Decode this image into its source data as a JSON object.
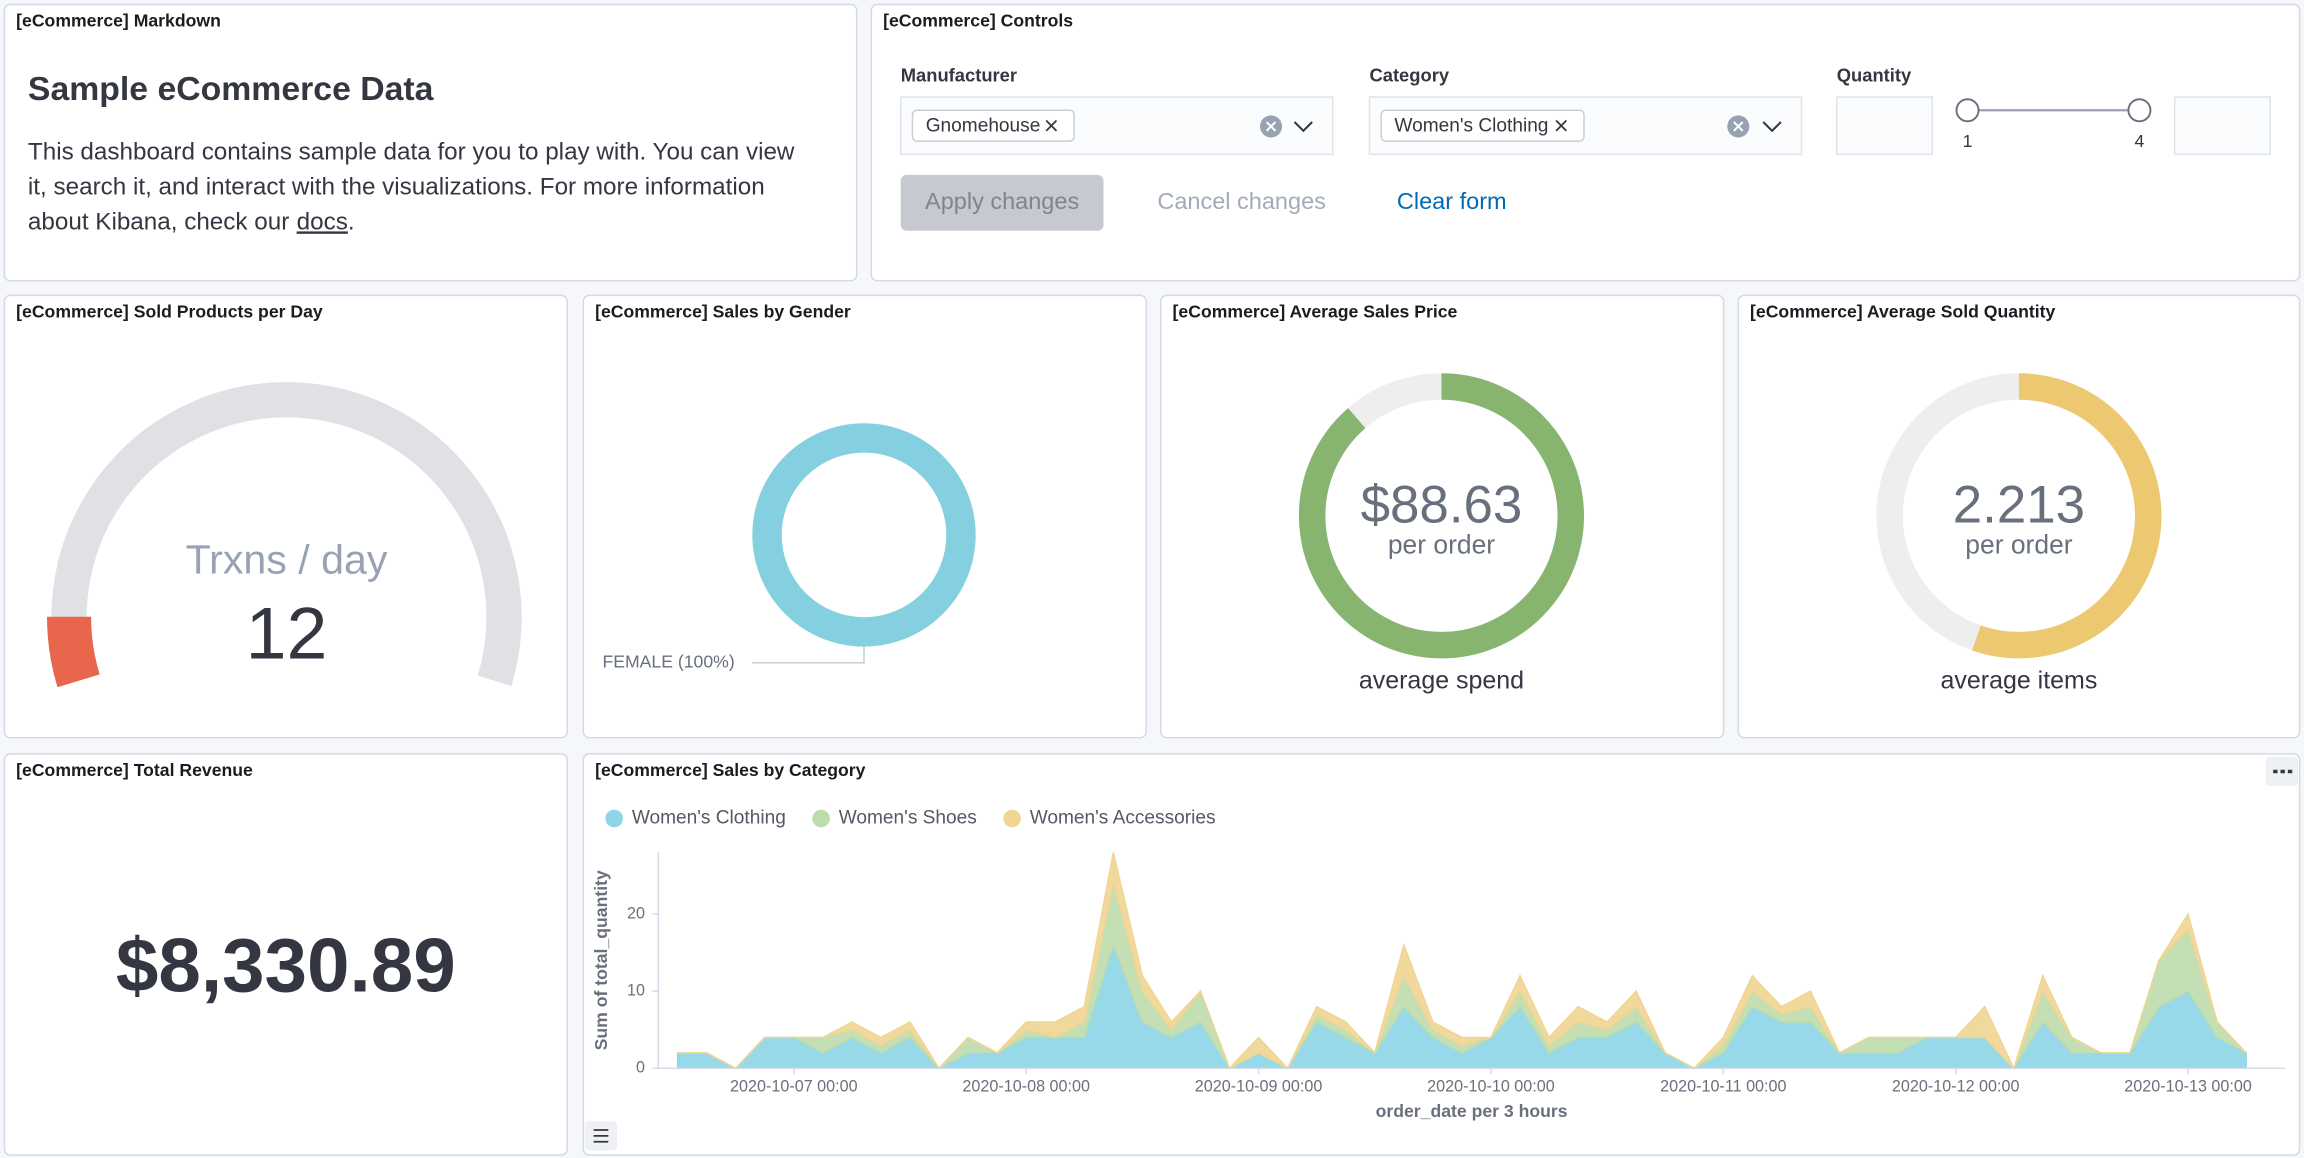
{
  "markdown": {
    "title": "[eCommerce] Markdown",
    "heading": "Sample eCommerce Data",
    "lines": [
      "This dashboard contains sample data for you to play with. You can view",
      "it, search it, and interact with the visualizations. For more information",
      "about Kibana, check our"
    ],
    "link": "docs",
    "end": "."
  },
  "controls": {
    "title": "[eCommerce] Controls",
    "manufacturer": {
      "label": "Manufacturer",
      "selected": "Gnomehouse"
    },
    "category": {
      "label": "Category",
      "selected": "Women's Clothing"
    },
    "quantity": {
      "label": "Quantity",
      "min": 1,
      "max": 4
    },
    "buttons": {
      "apply": "Apply changes",
      "cancel": "Cancel changes",
      "clear": "Clear form"
    }
  },
  "chart_data": [
    {
      "type": "gauge",
      "title": "[eCommerce] Sold Products per Day",
      "label": "Trxns / day",
      "value": 12,
      "range": [
        0,
        150
      ],
      "color": "#e7664c"
    },
    {
      "type": "donut",
      "title": "[eCommerce] Sales by Gender",
      "values": [
        100
      ],
      "value_labels": [
        "FEMALE (100%)"
      ],
      "colors": [
        "#85d0e0"
      ]
    },
    {
      "type": "goal",
      "title": "[eCommerce] Average Sales Price",
      "value": 88.63,
      "value_label": "$88.63",
      "sublabel": "per order",
      "caption": "average spend",
      "range": [
        0,
        100
      ],
      "color": "#87b46f"
    },
    {
      "type": "goal",
      "title": "[eCommerce] Average Sold Quantity",
      "value": 2.213,
      "sublabel": "per order",
      "caption": "average items",
      "range": [
        0,
        4
      ],
      "color": "#ecc870"
    },
    {
      "type": "metric",
      "title": "[eCommerce] Total Revenue",
      "value": 8330.89,
      "value_label": "$8,330.89"
    },
    {
      "type": "area",
      "stacked": true,
      "title": "[eCommerce] Sales by Category",
      "xlabel": "order_date per 3 hours",
      "ylabel": "Sum of total_quantity",
      "legend": "top-left",
      "x": [
        "2020-10-06 12:00",
        "2020-10-06 15:00",
        "2020-10-06 18:00",
        "2020-10-06 21:00",
        "2020-10-07 00:00",
        "2020-10-07 03:00",
        "2020-10-07 06:00",
        "2020-10-07 09:00",
        "2020-10-07 12:00",
        "2020-10-07 15:00",
        "2020-10-07 18:00",
        "2020-10-07 21:00",
        "2020-10-08 00:00",
        "2020-10-08 03:00",
        "2020-10-08 06:00",
        "2020-10-08 09:00",
        "2020-10-08 12:00",
        "2020-10-08 15:00",
        "2020-10-08 18:00",
        "2020-10-08 21:00",
        "2020-10-09 00:00",
        "2020-10-09 03:00",
        "2020-10-09 06:00",
        "2020-10-09 09:00",
        "2020-10-09 12:00",
        "2020-10-09 15:00",
        "2020-10-09 18:00",
        "2020-10-09 21:00",
        "2020-10-10 00:00",
        "2020-10-10 03:00",
        "2020-10-10 06:00",
        "2020-10-10 09:00",
        "2020-10-10 12:00",
        "2020-10-10 15:00",
        "2020-10-10 18:00",
        "2020-10-10 21:00",
        "2020-10-11 00:00",
        "2020-10-11 03:00",
        "2020-10-11 06:00",
        "2020-10-11 09:00",
        "2020-10-11 12:00",
        "2020-10-11 15:00",
        "2020-10-11 18:00",
        "2020-10-11 21:00",
        "2020-10-12 00:00",
        "2020-10-12 03:00",
        "2020-10-12 06:00",
        "2020-10-12 09:00",
        "2020-10-12 12:00",
        "2020-10-12 15:00",
        "2020-10-12 18:00",
        "2020-10-12 21:00",
        "2020-10-13 00:00",
        "2020-10-13 03:00",
        "2020-10-13 06:00"
      ],
      "series": [
        {
          "name": "Women's Clothing",
          "color": "#8dd5e7",
          "values": [
            2,
            2,
            0,
            4,
            4,
            2,
            4,
            2,
            4,
            0,
            2,
            2,
            4,
            4,
            4,
            16,
            6,
            4,
            6,
            0,
            2,
            0,
            6,
            4,
            2,
            8,
            4,
            2,
            4,
            8,
            2,
            4,
            4,
            6,
            2,
            0,
            2,
            8,
            6,
            6,
            2,
            2,
            2,
            4,
            4,
            4,
            0,
            6,
            2,
            2,
            2,
            8,
            10,
            4,
            2
          ]
        },
        {
          "name": "Women's Shoes",
          "color": "#bcdcab",
          "values": [
            0,
            0,
            0,
            0,
            0,
            2,
            1,
            1,
            1,
            0,
            2,
            0,
            1,
            0,
            2,
            8,
            4,
            1,
            4,
            0,
            0,
            0,
            1,
            1,
            0,
            4,
            1,
            1,
            0,
            2,
            1,
            2,
            1,
            2,
            0,
            0,
            1,
            2,
            1,
            2,
            0,
            2,
            2,
            0,
            0,
            0,
            0,
            4,
            2,
            0,
            0,
            6,
            8,
            2,
            0
          ]
        },
        {
          "name": "Women's Accessories",
          "color": "#f0d594",
          "values": [
            0,
            0,
            0,
            0,
            0,
            0,
            1,
            1,
            1,
            0,
            0,
            0,
            1,
            2,
            2,
            4,
            2,
            1,
            0,
            0,
            2,
            0,
            1,
            1,
            0,
            4,
            1,
            1,
            0,
            2,
            1,
            2,
            1,
            2,
            0,
            0,
            1,
            2,
            1,
            2,
            0,
            0,
            0,
            0,
            0,
            4,
            0,
            2,
            0,
            0,
            0,
            0,
            2,
            0,
            0
          ]
        }
      ],
      "xlim": [
        "2020-10-06 10:00",
        "2020-10-13 10:00"
      ],
      "xticks": [
        "2020-10-07 00:00",
        "2020-10-08 00:00",
        "2020-10-09 00:00",
        "2020-10-10 00:00",
        "2020-10-11 00:00",
        "2020-10-12 00:00",
        "2020-10-13 00:00"
      ],
      "ylim": [
        0,
        28
      ],
      "yticks": [
        0,
        10,
        20
      ]
    }
  ]
}
